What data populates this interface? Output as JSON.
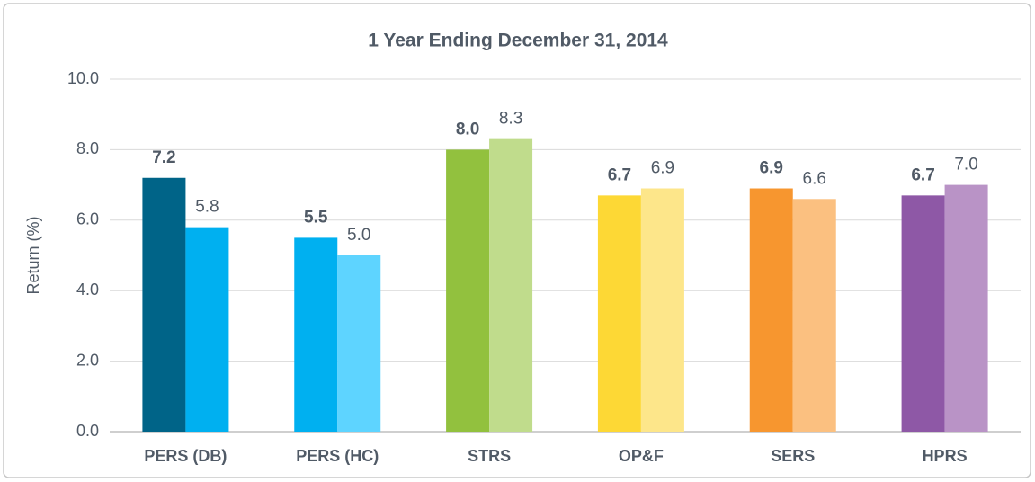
{
  "chart_data": {
    "type": "bar",
    "title": "1 Year Ending December 31, 2014",
    "y_label": "Return (%)",
    "categories": [
      "PERS (DB)",
      "PERS (HC)",
      "STRS",
      "OP&F",
      "SERS",
      "HPRS"
    ],
    "series": [
      {
        "values": [
          7.2,
          5.5,
          8.0,
          6.7,
          6.9,
          6.7
        ],
        "value_labels": [
          "7.2",
          "5.5",
          "8.0",
          "6.7",
          "6.9",
          "6.7"
        ],
        "colors": [
          "#006488",
          "#00b0f0",
          "#92c13e",
          "#fdd835",
          "#f7962f",
          "#8e58a6"
        ]
      },
      {
        "values": [
          5.8,
          5.0,
          8.3,
          6.9,
          6.6,
          7.0
        ],
        "value_labels": [
          "5.8",
          "5.0",
          "8.3",
          "6.9",
          "6.6",
          "7.0"
        ],
        "colors": [
          "#00b0f0",
          "#5ed4ff",
          "#c0dc8c",
          "#fde68a",
          "#fbc080",
          "#b993c6"
        ]
      }
    ],
    "ylim": [
      0,
      10
    ],
    "yticks": [
      {
        "value": 0,
        "label": "0.0"
      },
      {
        "value": 2,
        "label": "2.0"
      },
      {
        "value": 4,
        "label": "4.0"
      },
      {
        "value": 6,
        "label": "6.0"
      },
      {
        "value": 8,
        "label": "8.0"
      },
      {
        "value": 10,
        "label": "10.0"
      }
    ],
    "grid": true
  }
}
